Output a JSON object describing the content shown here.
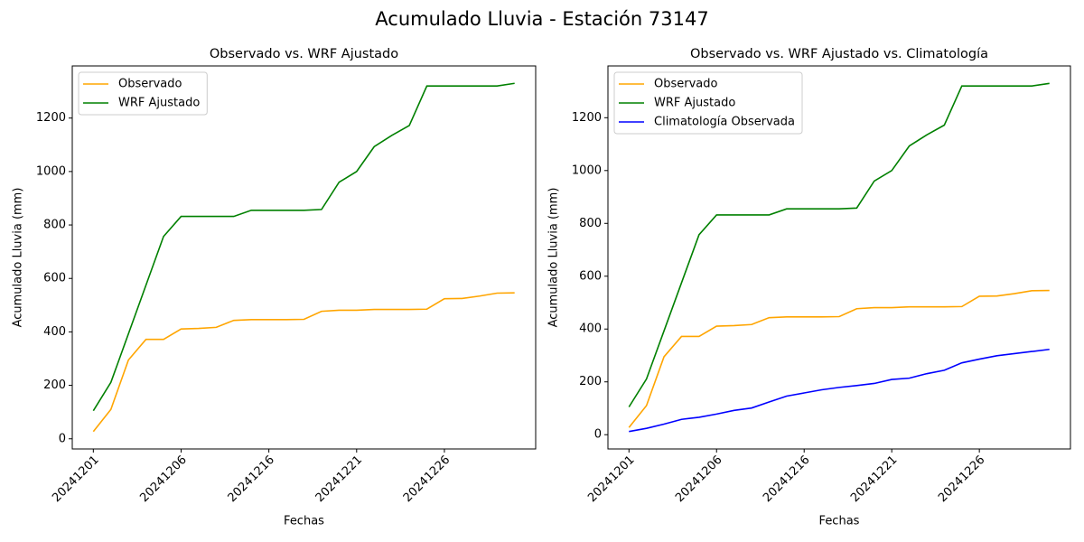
{
  "title": "Acumulado Lluvia - Estación 73147",
  "chart_data": [
    {
      "type": "line",
      "title": "Observado vs. WRF Ajustado",
      "xlabel": "Fechas",
      "ylabel": "Acumulado Lluvia (mm)",
      "categories": [
        "20241201",
        null,
        null,
        null,
        null,
        "20241206",
        null,
        null,
        null,
        null,
        "20241216",
        null,
        null,
        null,
        null,
        "20241221",
        null,
        null,
        null,
        null,
        "20241226",
        null,
        null,
        null,
        null
      ],
      "series": [
        {
          "name": "Observado",
          "color": "#ffa500",
          "values": [
            27,
            110,
            295,
            372,
            372,
            411,
            413,
            417,
            443,
            446,
            446,
            446,
            447,
            477,
            481,
            481,
            484,
            484,
            484,
            485,
            524,
            525,
            534,
            545,
            546
          ]
        },
        {
          "name": "WRF Ajustado",
          "color": "#008000",
          "values": [
            105,
            211,
            393,
            575,
            757,
            832,
            832,
            832,
            832,
            855,
            855,
            855,
            855,
            858,
            960,
            1000,
            1093,
            1135,
            1172,
            1320,
            1320,
            1320,
            1320,
            1320,
            1330
          ]
        }
      ],
      "ylim": [
        -38,
        1395
      ],
      "yticks": [
        0,
        200,
        400,
        600,
        800,
        1000,
        1200
      ],
      "legend": "upper left"
    },
    {
      "type": "line",
      "title": "Observado vs. WRF Ajustado vs. Climatología",
      "xlabel": "Fechas",
      "ylabel": "Acumulado Lluvia (mm)",
      "categories": [
        "20241201",
        null,
        null,
        null,
        null,
        "20241206",
        null,
        null,
        null,
        null,
        "20241216",
        null,
        null,
        null,
        null,
        "20241221",
        null,
        null,
        null,
        null,
        "20241226",
        null,
        null,
        null,
        null
      ],
      "series": [
        {
          "name": "Observado",
          "color": "#ffa500",
          "values": [
            27,
            110,
            295,
            372,
            372,
            411,
            413,
            417,
            443,
            446,
            446,
            446,
            447,
            477,
            481,
            481,
            484,
            484,
            484,
            485,
            524,
            525,
            534,
            545,
            546
          ]
        },
        {
          "name": "WRF Ajustado",
          "color": "#008000",
          "values": [
            105,
            211,
            393,
            575,
            757,
            832,
            832,
            832,
            832,
            855,
            855,
            855,
            855,
            858,
            960,
            1000,
            1093,
            1135,
            1172,
            1320,
            1320,
            1320,
            1320,
            1320,
            1330
          ]
        },
        {
          "name": "Climatología Observada",
          "color": "#0000ff",
          "values": [
            12,
            24,
            40,
            58,
            66,
            78,
            92,
            101,
            124,
            146,
            158,
            170,
            179,
            186,
            194,
            209,
            214,
            231,
            244,
            272,
            286,
            299,
            307,
            315,
            323
          ]
        }
      ],
      "ylim": [
        -54,
        1396
      ],
      "yticks": [
        0,
        200,
        400,
        600,
        800,
        1000,
        1200
      ],
      "legend": "upper left"
    }
  ]
}
